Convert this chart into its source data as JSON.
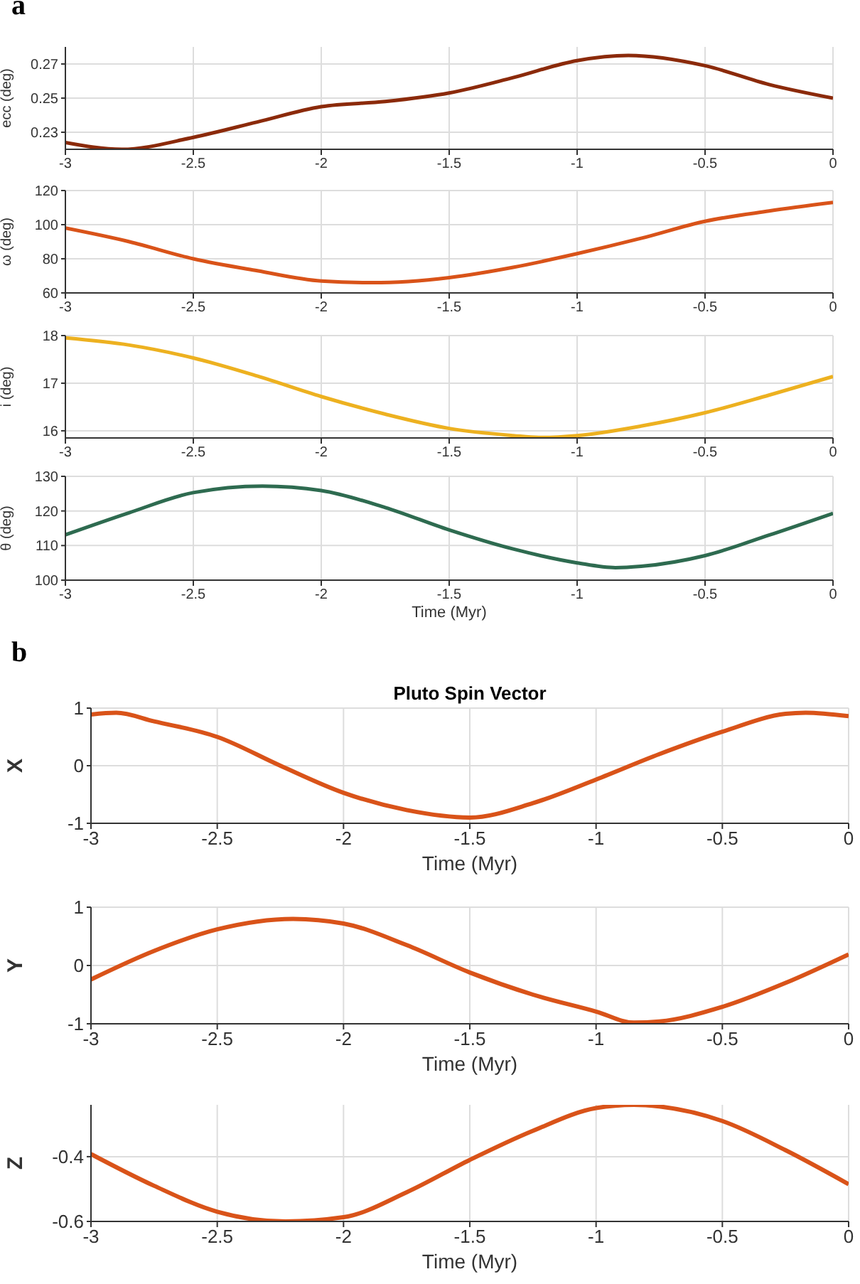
{
  "chart_data": [
    {
      "type": "line",
      "annotations": [
        "a"
      ],
      "ylabel": "ecc (deg)",
      "x": [
        -3,
        -2.78,
        -2.5,
        -2.25,
        -2,
        -1.75,
        -1.5,
        -1.25,
        -1,
        -0.8,
        -0.5,
        -0.25,
        0
      ],
      "series": [
        {
          "color": "#8b2a0a",
          "values": [
            0.224,
            0.22,
            0.227,
            0.236,
            0.245,
            0.248,
            0.253,
            0.262,
            0.272,
            0.275,
            0.269,
            0.258,
            0.25
          ]
        }
      ],
      "xlim": [
        -3,
        0
      ],
      "xticks": [
        -3,
        -2.5,
        -2,
        -1.5,
        -1,
        -0.5,
        0
      ],
      "ylim": [
        0.22,
        0.28
      ],
      "yticks": [
        0.23,
        0.25,
        0.27
      ],
      "grid": true,
      "legend": false,
      "marker": "none",
      "line_style": "solid"
    },
    {
      "type": "line",
      "ylabel": "ω (deg)",
      "x": [
        -3,
        -2.75,
        -2.5,
        -2.25,
        -2,
        -1.8,
        -1.5,
        -1.25,
        -1,
        -0.75,
        -0.5,
        -0.25,
        0
      ],
      "series": [
        {
          "color": "#d95319",
          "values": [
            98,
            90,
            80,
            73,
            67,
            66,
            69,
            75,
            83,
            92,
            102,
            108,
            113
          ]
        }
      ],
      "xlim": [
        -3,
        0
      ],
      "xticks": [
        -3,
        -2.5,
        -2,
        -1.5,
        -1,
        -0.5,
        0
      ],
      "ylim": [
        60,
        120
      ],
      "yticks": [
        60,
        80,
        100,
        120
      ],
      "grid": true,
      "legend": false,
      "marker": "none",
      "line_style": "solid"
    },
    {
      "type": "line",
      "ylabel": "i (deg)",
      "x": [
        -3,
        -2.75,
        -2.5,
        -2.25,
        -2,
        -1.75,
        -1.5,
        -1.25,
        -1.15,
        -1,
        -0.75,
        -0.5,
        -0.25,
        0
      ],
      "series": [
        {
          "color": "#edb120",
          "values": [
            17.95,
            17.8,
            17.53,
            17.15,
            16.72,
            16.35,
            16.05,
            15.9,
            15.86,
            15.9,
            16.1,
            16.38,
            16.75,
            17.14
          ]
        }
      ],
      "xlim": [
        -3,
        0
      ],
      "xticks": [
        -3,
        -2.5,
        -2,
        -1.5,
        -1,
        -0.5,
        0
      ],
      "ylim": [
        15.85,
        18
      ],
      "yticks": [
        16,
        17,
        18
      ],
      "grid": true,
      "legend": false,
      "marker": "none",
      "line_style": "solid"
    },
    {
      "type": "line",
      "ylabel": "θ (deg)",
      "xlabel": "Time (Myr)",
      "x": [
        -3,
        -2.75,
        -2.5,
        -2.23,
        -2,
        -1.75,
        -1.5,
        -1.25,
        -1,
        -0.85,
        -0.75,
        -0.5,
        -0.25,
        0
      ],
      "series": [
        {
          "color": "#2e6b50",
          "values": [
            113.1,
            119.5,
            125.3,
            127.2,
            125.9,
            121,
            114.5,
            109,
            105,
            103.6,
            104,
            107.1,
            113,
            119.3
          ]
        }
      ],
      "xlim": [
        -3,
        0
      ],
      "xticks": [
        -3,
        -2.5,
        -2,
        -1.5,
        -1,
        -0.5,
        0
      ],
      "ylim": [
        100,
        130
      ],
      "yticks": [
        100,
        110,
        120,
        130
      ],
      "grid": true,
      "legend": false,
      "marker": "none",
      "line_style": "solid"
    },
    {
      "type": "line",
      "annotations": [
        "b"
      ],
      "title": "Pluto Spin Vector",
      "ylabel": "X",
      "xlabel": "Time (Myr)",
      "x": [
        -3,
        -2.9,
        -2.75,
        -2.5,
        -2.25,
        -2,
        -1.75,
        -1.5,
        -1.25,
        -1,
        -0.75,
        -0.5,
        -0.25,
        -0.17,
        0
      ],
      "series": [
        {
          "color": "#d95319",
          "values": [
            0.89,
            0.92,
            0.77,
            0.5,
            0,
            -0.47,
            -0.77,
            -0.9,
            -0.65,
            -0.24,
            0.2,
            0.59,
            0.9,
            0.92,
            0.86
          ]
        }
      ],
      "xlim": [
        -3,
        0
      ],
      "xticks": [
        -3,
        -2.5,
        -2,
        -1.5,
        -1,
        -0.5,
        0
      ],
      "ylim": [
        -1,
        1
      ],
      "yticks": [
        -1,
        0,
        1
      ],
      "grid": true,
      "legend": false,
      "marker": "none",
      "line_style": "solid"
    },
    {
      "type": "line",
      "ylabel": "Y",
      "xlabel": "Time (Myr)",
      "x": [
        -3,
        -2.75,
        -2.5,
        -2.2,
        -2,
        -1.75,
        -1.5,
        -1.25,
        -1,
        -0.85,
        -0.75,
        -0.5,
        -0.25,
        0
      ],
      "series": [
        {
          "color": "#d95319",
          "values": [
            -0.24,
            0.25,
            0.62,
            0.8,
            0.72,
            0.35,
            -0.12,
            -0.5,
            -0.79,
            -0.98,
            -0.96,
            -0.71,
            -0.3,
            0.19
          ]
        }
      ],
      "xlim": [
        -3,
        0
      ],
      "xticks": [
        -3,
        -2.5,
        -2,
        -1.5,
        -1,
        -0.5,
        0
      ],
      "ylim": [
        -1,
        1
      ],
      "yticks": [
        -1,
        0,
        1
      ],
      "grid": true,
      "legend": false,
      "marker": "none",
      "line_style": "solid"
    },
    {
      "type": "line",
      "ylabel": "Z",
      "xlabel": "Time (Myr)",
      "x": [
        -3,
        -2.75,
        -2.5,
        -2.23,
        -2,
        -1.75,
        -1.5,
        -1.25,
        -1,
        -0.85,
        -0.75,
        -0.5,
        -0.25,
        0
      ],
      "series": [
        {
          "color": "#d95319",
          "values": [
            -0.392,
            -0.49,
            -0.57,
            -0.6,
            -0.587,
            -0.51,
            -0.41,
            -0.32,
            -0.25,
            -0.24,
            -0.245,
            -0.29,
            -0.38,
            -0.485
          ]
        }
      ],
      "xlim": [
        -3,
        0
      ],
      "xticks": [
        -3,
        -2.5,
        -2,
        -1.5,
        -1,
        -0.5,
        0
      ],
      "ylim": [
        -0.6,
        -0.24
      ],
      "yticks": [
        -0.6,
        -0.4
      ],
      "grid": true,
      "legend": false,
      "marker": "none",
      "line_style": "solid"
    }
  ]
}
